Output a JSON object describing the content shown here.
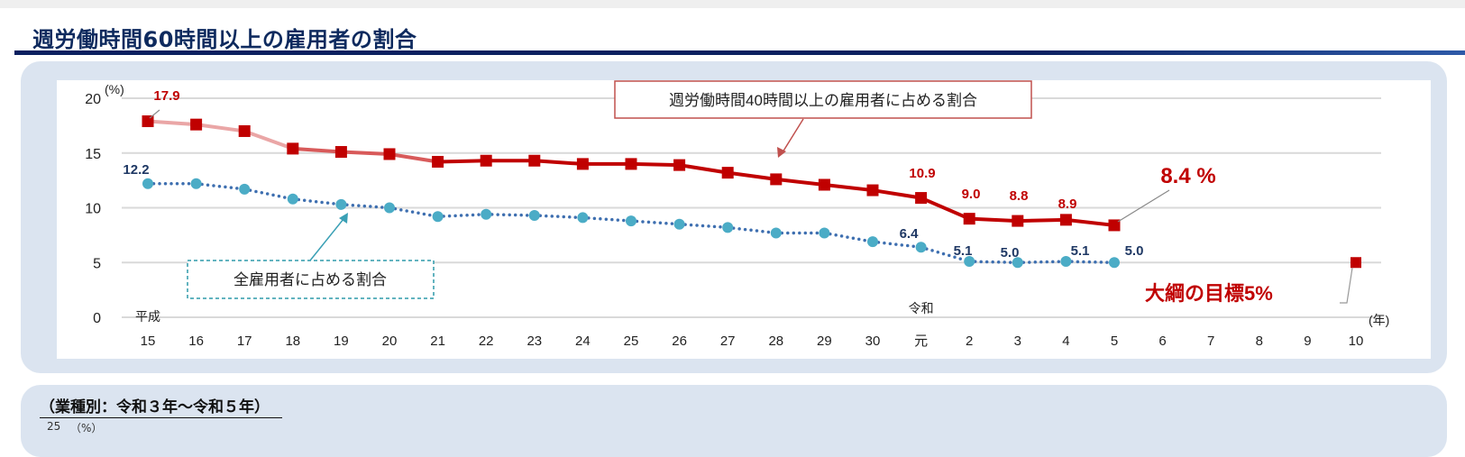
{
  "title": "週労働時間60時間以上の雇用者の割合",
  "subtitle": "（業種別：令和３年〜令和５年）",
  "next_chart_fragment": {
    "y_tick": "25",
    "unit": "（%）"
  },
  "chart_data": {
    "type": "line",
    "ylabel": "(%)",
    "xlabel": "(年)",
    "ylim": [
      0,
      20
    ],
    "yticks": [
      "0",
      "5",
      "10",
      "15",
      "20"
    ],
    "grid": true,
    "era_labels": [
      {
        "text": "平成",
        "at": "15"
      },
      {
        "text": "令和",
        "at": "元"
      }
    ],
    "categories": [
      "15",
      "16",
      "17",
      "18",
      "19",
      "20",
      "21",
      "22",
      "23",
      "24",
      "25",
      "26",
      "27",
      "28",
      "29",
      "30",
      "元",
      "2",
      "3",
      "4",
      "5",
      "6",
      "7",
      "8",
      "9",
      "10"
    ],
    "series": [
      {
        "name": "週労働時間40時間以上の雇用者に占める割合",
        "color": "#c00000",
        "marker": "square",
        "values": [
          17.9,
          17.6,
          17.0,
          15.4,
          15.1,
          14.9,
          14.2,
          14.3,
          14.3,
          14.0,
          14.0,
          13.9,
          13.2,
          12.6,
          12.1,
          11.6,
          10.9,
          9.0,
          8.8,
          8.9,
          8.4,
          null,
          null,
          null,
          null,
          null
        ],
        "labels": {
          "0": "17.9",
          "16": "10.9",
          "17": "9.0",
          "18": "8.8",
          "19": "8.9",
          "20": "8.4 %"
        }
      },
      {
        "name": "全雇用者に占める割合",
        "color": "#4bacc6",
        "line_color": "#3e6fb0",
        "marker": "circle",
        "style": "dotted",
        "values": [
          12.2,
          12.2,
          11.7,
          10.8,
          10.3,
          10.0,
          9.2,
          9.4,
          9.3,
          9.1,
          8.8,
          8.5,
          8.2,
          7.7,
          7.7,
          6.9,
          6.4,
          5.1,
          5.0,
          5.1,
          5.0,
          null,
          null,
          null,
          null,
          null
        ],
        "labels": {
          "0": "12.2",
          "16": "6.4",
          "17": "5.1",
          "18": "5.0",
          "19": "5.1",
          "20": "5.0"
        }
      }
    ],
    "target": {
      "category": "10",
      "value": 5,
      "label": "大綱の目標5%",
      "color": "#c00000"
    }
  }
}
